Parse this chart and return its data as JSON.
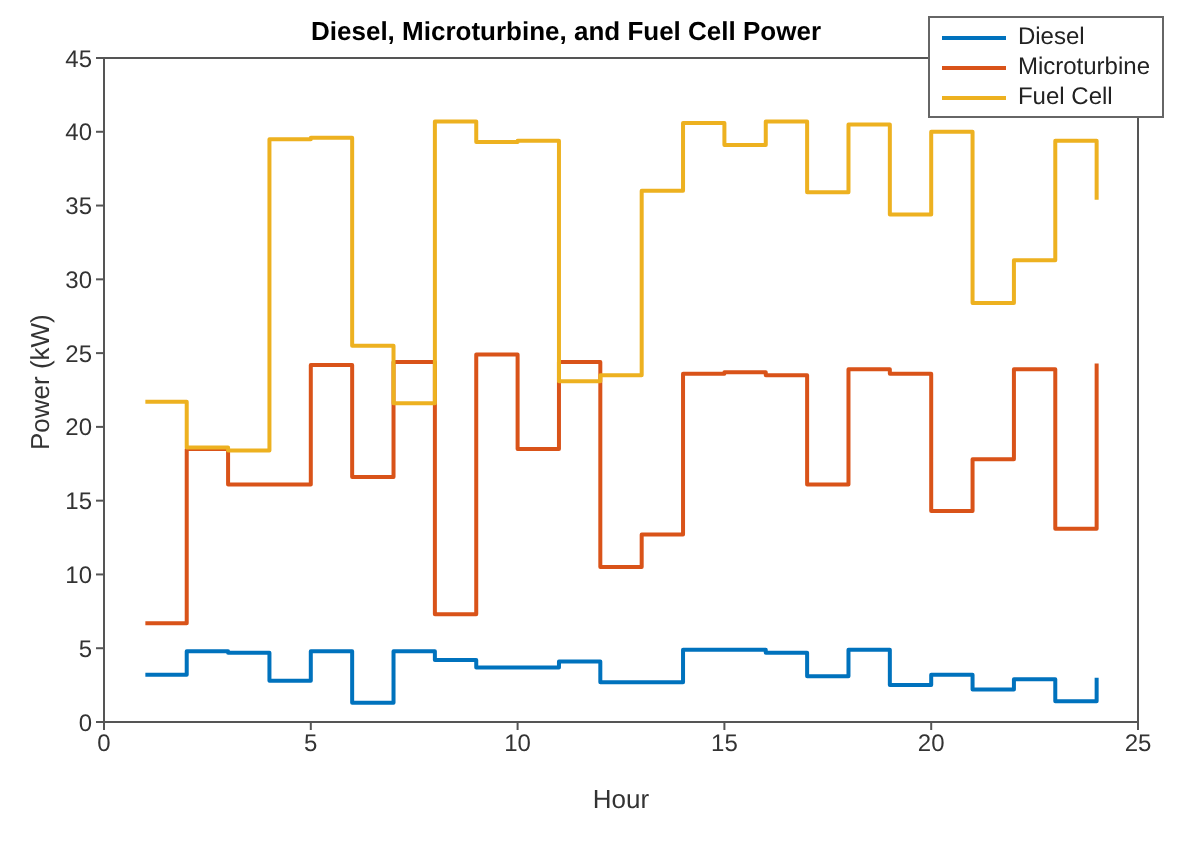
{
  "chart_data": {
    "type": "step",
    "title": "Diesel, Microturbine, and Fuel Cell Power",
    "xlabel": "Hour",
    "ylabel": "Power (kW)",
    "x": [
      1,
      2,
      3,
      4,
      5,
      6,
      7,
      8,
      9,
      10,
      11,
      12,
      13,
      14,
      15,
      16,
      17,
      18,
      19,
      20,
      21,
      22,
      23,
      24
    ],
    "series": [
      {
        "name": "Diesel",
        "color": "#0072bd",
        "values": [
          3.2,
          4.8,
          4.7,
          2.8,
          4.8,
          1.3,
          4.8,
          4.2,
          3.7,
          3.7,
          4.1,
          2.7,
          2.7,
          4.9,
          4.9,
          4.7,
          3.1,
          4.9,
          2.5,
          3.2,
          2.2,
          2.9,
          1.4,
          3.0
        ]
      },
      {
        "name": "Microturbine",
        "color": "#d95319",
        "values": [
          6.7,
          18.5,
          16.1,
          16.1,
          24.2,
          16.6,
          24.4,
          7.3,
          24.9,
          18.5,
          24.4,
          10.5,
          12.7,
          23.6,
          23.7,
          23.5,
          16.1,
          23.9,
          23.6,
          14.3,
          17.8,
          23.9,
          13.1,
          24.3
        ]
      },
      {
        "name": "Fuel Cell",
        "color": "#edb120",
        "values": [
          21.7,
          18.6,
          18.4,
          39.5,
          39.6,
          25.5,
          21.6,
          40.7,
          39.3,
          39.4,
          23.1,
          23.5,
          36.0,
          40.6,
          39.1,
          40.7,
          35.9,
          40.5,
          34.4,
          40.0,
          28.4,
          31.3,
          39.4,
          35.4
        ]
      }
    ],
    "xlim": [
      0,
      25
    ],
    "xticks": [
      0,
      5,
      10,
      15,
      20,
      25
    ],
    "ylim": [
      0,
      45
    ],
    "yticks": [
      0,
      5,
      10,
      15,
      20,
      25,
      30,
      35,
      40,
      45
    ],
    "grid": false,
    "legend": "top right",
    "marker": "none",
    "line_style": "solid"
  }
}
